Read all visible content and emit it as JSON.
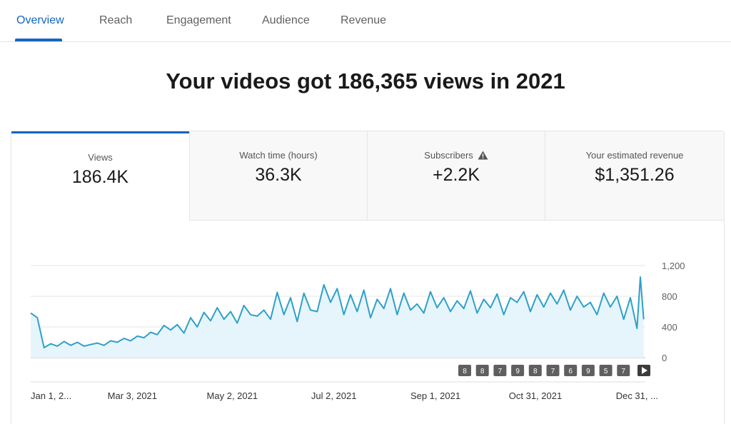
{
  "tabs": [
    {
      "label": "Overview",
      "active": true
    },
    {
      "label": "Reach",
      "active": false
    },
    {
      "label": "Engagement",
      "active": false
    },
    {
      "label": "Audience",
      "active": false
    },
    {
      "label": "Revenue",
      "active": false
    }
  ],
  "headline": "Your videos got 186,365 views in 2021",
  "metrics": [
    {
      "label": "Views",
      "value": "186.4K"
    },
    {
      "label": "Watch time (hours)",
      "value": "36.3K"
    },
    {
      "label": "Subscribers",
      "value": "+2.2K",
      "icon": "warning-icon"
    },
    {
      "label": "Your estimated revenue",
      "value": "$1,351.26"
    }
  ],
  "colors": {
    "accent": "#1565c0",
    "line": "#2ea0c8",
    "fill": "#e6f5fb"
  },
  "chart_data": {
    "type": "area",
    "title": "",
    "xlabel": "",
    "ylabel": "",
    "ylim": [
      0,
      1200
    ],
    "yticks": [
      "1,200",
      "800",
      "400",
      "0"
    ],
    "ytick_values": [
      1200,
      800,
      400,
      0
    ],
    "xlim": [
      "2021-01-01",
      "2022-01-05"
    ],
    "xticks": [
      {
        "label": "Jan 1, 2...",
        "date": "2021-01-01"
      },
      {
        "label": "Mar 3, 2021",
        "date": "2021-03-03"
      },
      {
        "label": "May 2, 2021",
        "date": "2021-05-02"
      },
      {
        "label": "Jul 2, 2021",
        "date": "2021-07-02"
      },
      {
        "label": "Sep 1, 2021",
        "date": "2021-09-01"
      },
      {
        "label": "Oct 31, 2021",
        "date": "2021-10-31"
      },
      {
        "label": "Dec 31, ...",
        "date": "2021-12-31"
      }
    ],
    "grid": true,
    "series": [
      {
        "x": [
          "2021-01-01",
          "2021-01-05",
          "2021-01-09",
          "2021-01-13",
          "2021-01-17",
          "2021-01-21",
          "2021-01-25",
          "2021-01-29",
          "2021-02-02",
          "2021-02-06",
          "2021-02-10",
          "2021-02-14",
          "2021-02-18",
          "2021-02-22",
          "2021-02-26",
          "2021-03-02",
          "2021-03-06",
          "2021-03-10",
          "2021-03-14",
          "2021-03-18",
          "2021-03-22",
          "2021-03-26",
          "2021-03-30",
          "2021-04-03",
          "2021-04-07",
          "2021-04-11",
          "2021-04-15",
          "2021-04-19",
          "2021-04-23",
          "2021-04-27",
          "2021-05-01",
          "2021-05-05",
          "2021-05-09",
          "2021-05-13",
          "2021-05-17",
          "2021-05-21",
          "2021-05-25",
          "2021-05-29",
          "2021-06-02",
          "2021-06-06",
          "2021-06-10",
          "2021-06-14",
          "2021-06-18",
          "2021-06-22",
          "2021-06-26",
          "2021-06-30",
          "2021-07-04",
          "2021-07-08",
          "2021-07-12",
          "2021-07-16",
          "2021-07-20",
          "2021-07-24",
          "2021-07-28",
          "2021-08-01",
          "2021-08-05",
          "2021-08-09",
          "2021-08-13",
          "2021-08-17",
          "2021-08-21",
          "2021-08-25",
          "2021-08-29",
          "2021-09-02",
          "2021-09-06",
          "2021-09-10",
          "2021-09-14",
          "2021-09-18",
          "2021-09-22",
          "2021-09-26",
          "2021-09-30",
          "2021-10-04",
          "2021-10-08",
          "2021-10-12",
          "2021-10-16",
          "2021-10-20",
          "2021-10-24",
          "2021-10-28",
          "2021-11-01",
          "2021-11-05",
          "2021-11-09",
          "2021-11-13",
          "2021-11-17",
          "2021-11-21",
          "2021-11-25",
          "2021-11-29",
          "2021-12-03",
          "2021-12-07",
          "2021-12-11",
          "2021-12-15",
          "2021-12-19",
          "2021-12-23",
          "2021-12-27",
          "2021-12-31",
          "2022-01-02",
          "2022-01-04"
        ],
        "values": [
          580,
          520,
          130,
          180,
          150,
          210,
          160,
          200,
          150,
          170,
          190,
          160,
          220,
          200,
          250,
          220,
          280,
          260,
          330,
          300,
          420,
          360,
          430,
          320,
          520,
          400,
          590,
          480,
          650,
          500,
          600,
          450,
          680,
          560,
          540,
          620,
          500,
          850,
          560,
          780,
          470,
          840,
          620,
          600,
          950,
          720,
          900,
          560,
          820,
          600,
          880,
          520,
          760,
          640,
          900,
          560,
          840,
          620,
          700,
          580,
          860,
          650,
          780,
          600,
          740,
          640,
          870,
          580,
          760,
          650,
          830,
          560,
          780,
          720,
          860,
          600,
          820,
          660,
          840,
          700,
          880,
          620,
          800,
          660,
          720,
          560,
          840,
          660,
          800,
          500,
          780,
          380,
          1050,
          500
        ]
      }
    ],
    "annotations": [
      "8",
      "8",
      "7",
      "9",
      "8",
      "7",
      "6",
      "9",
      "5",
      "7"
    ]
  }
}
